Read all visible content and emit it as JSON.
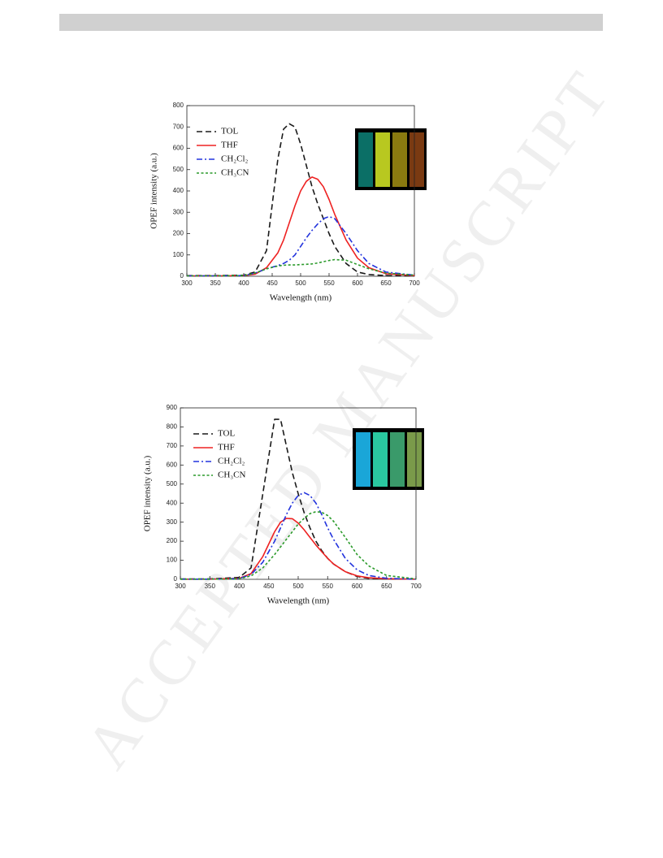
{
  "watermark": "ACCEPTED MANUSCRIPT",
  "chart_data": [
    {
      "type": "line",
      "xlabel": "Wavelength (nm)",
      "ylabel": "OPEF intensity (a.u.)",
      "x": [
        300,
        350,
        400,
        420,
        440,
        460,
        470,
        480,
        490,
        500,
        510,
        520,
        530,
        540,
        550,
        560,
        580,
        600,
        620,
        650,
        700
      ],
      "xlim": [
        300,
        700
      ],
      "xticks": [
        300,
        350,
        400,
        450,
        500,
        550,
        600,
        650,
        700
      ],
      "ylim": [
        0,
        800
      ],
      "yticks": [
        0,
        100,
        200,
        300,
        400,
        500,
        600,
        700,
        800
      ],
      "series": [
        {
          "name": "TOL",
          "color": "#1a1a1a",
          "dash": "dashed",
          "values": [
            3,
            3,
            5,
            20,
            120,
            550,
            690,
            715,
            700,
            620,
            520,
            420,
            340,
            270,
            200,
            140,
            60,
            20,
            8,
            3,
            2
          ]
        },
        {
          "name": "THF",
          "color": "#ee2222",
          "dash": "solid",
          "values": [
            2,
            2,
            3,
            10,
            40,
            110,
            170,
            250,
            330,
            400,
            445,
            465,
            455,
            420,
            360,
            290,
            170,
            85,
            40,
            12,
            3
          ]
        },
        {
          "name": "CH₂Cl₂",
          "color": "#2233dd",
          "dash": "dashdot",
          "values": [
            2,
            2,
            3,
            15,
            35,
            50,
            60,
            75,
            100,
            140,
            180,
            215,
            245,
            270,
            280,
            270,
            200,
            120,
            60,
            20,
            5
          ]
        },
        {
          "name": "CH₃CN",
          "color": "#2a9a2a",
          "dash": "dotted",
          "values": [
            2,
            2,
            3,
            15,
            35,
            48,
            52,
            53,
            53,
            55,
            56,
            58,
            62,
            68,
            74,
            78,
            75,
            55,
            35,
            15,
            5
          ]
        }
      ]
    },
    {
      "type": "line",
      "xlabel": "Wavelength (nm)",
      "ylabel": "OPEF intensity (a.u.)",
      "x": [
        300,
        350,
        400,
        420,
        440,
        460,
        470,
        480,
        490,
        500,
        510,
        520,
        530,
        540,
        550,
        560,
        580,
        600,
        620,
        650,
        700
      ],
      "xlim": [
        300,
        700
      ],
      "xticks": [
        300,
        350,
        400,
        450,
        500,
        550,
        600,
        650,
        700
      ],
      "ylim": [
        0,
        900
      ],
      "yticks": [
        0,
        100,
        200,
        300,
        400,
        500,
        600,
        700,
        800,
        900
      ],
      "series": [
        {
          "name": "TOL",
          "color": "#1a1a1a",
          "dash": "dashed",
          "values": [
            2,
            2,
            10,
            60,
            450,
            840,
            840,
            700,
            560,
            450,
            350,
            270,
            200,
            150,
            110,
            80,
            40,
            15,
            5,
            2,
            1
          ]
        },
        {
          "name": "THF",
          "color": "#ee2222",
          "dash": "solid",
          "values": [
            1,
            1,
            5,
            30,
            120,
            250,
            300,
            320,
            318,
            295,
            260,
            220,
            180,
            145,
            110,
            80,
            40,
            18,
            8,
            3,
            1
          ]
        },
        {
          "name": "CH₂Cl₂",
          "color": "#2233dd",
          "dash": "dashdot",
          "values": [
            1,
            1,
            4,
            25,
            90,
            200,
            270,
            340,
            400,
            440,
            455,
            440,
            400,
            340,
            270,
            210,
            110,
            50,
            20,
            5,
            1
          ]
        },
        {
          "name": "CH₃CN",
          "color": "#2a9a2a",
          "dash": "dotted",
          "values": [
            1,
            1,
            3,
            18,
            60,
            130,
            170,
            210,
            250,
            290,
            320,
            345,
            355,
            352,
            335,
            305,
            220,
            130,
            70,
            20,
            2
          ]
        }
      ]
    }
  ]
}
